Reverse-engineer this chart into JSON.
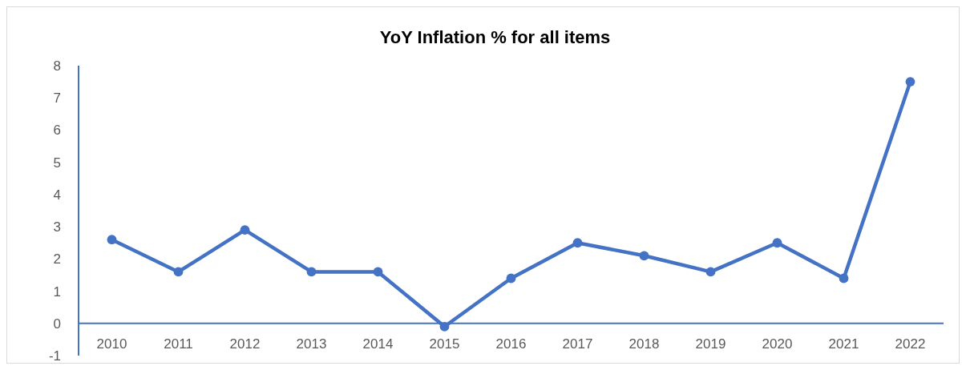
{
  "chart_data": {
    "type": "line",
    "title": "YoY Inflation % for all items",
    "categories": [
      "2010",
      "2011",
      "2012",
      "2013",
      "2014",
      "2015",
      "2016",
      "2017",
      "2018",
      "2019",
      "2020",
      "2021",
      "2022"
    ],
    "series": [
      {
        "color": "#4472c4",
        "values": [
          2.6,
          1.6,
          2.9,
          1.6,
          1.6,
          -0.1,
          1.4,
          2.5,
          2.1,
          1.6,
          2.5,
          1.4,
          7.5
        ]
      }
    ],
    "ylim": [
      -1,
      8
    ],
    "yticks": [
      -1,
      0,
      1,
      2,
      3,
      4,
      5,
      6,
      7,
      8
    ],
    "grid": false,
    "marker": "circle",
    "line_style": "solid"
  }
}
